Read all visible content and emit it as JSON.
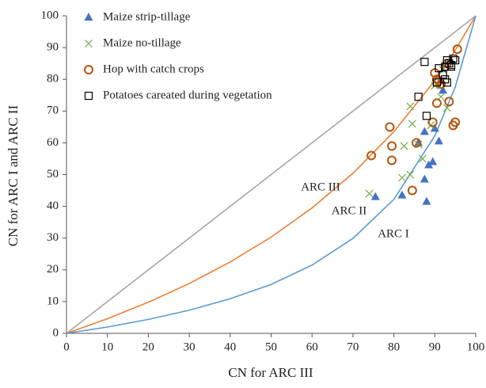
{
  "chart_data": {
    "type": "scatter",
    "xlabel": "CN for ARC III",
    "ylabel": "CN for ARC I and ARC II",
    "xlim": [
      0,
      100
    ],
    "ylim": [
      0,
      100
    ],
    "xticks": [
      0,
      10,
      20,
      30,
      40,
      50,
      60,
      70,
      80,
      90,
      100
    ],
    "yticks": [
      0,
      10,
      20,
      30,
      40,
      50,
      60,
      70,
      80,
      90,
      100
    ],
    "legend": "upper left",
    "annotations": [
      "ARC III",
      "ARC II",
      "ARC I"
    ],
    "curves": [
      {
        "color": "#a5a5a5",
        "x": [
          0,
          100
        ],
        "values": [
          0,
          100
        ]
      },
      {
        "color": "#ed7d31",
        "x": [
          0,
          10,
          20,
          30,
          40,
          50,
          60,
          70,
          80,
          90,
          95,
          100
        ],
        "values": [
          0,
          4.6,
          9.8,
          15.7,
          22.5,
          30.3,
          39.5,
          50.4,
          63.5,
          79.6,
          89.2,
          100
        ]
      },
      {
        "color": "#5b9bd5",
        "x": [
          0,
          10,
          20,
          30,
          40,
          50,
          60,
          70,
          80,
          90,
          95,
          100
        ],
        "values": [
          0,
          2.0,
          4.4,
          7.3,
          10.9,
          15.4,
          21.5,
          29.9,
          42.2,
          62.2,
          77.6,
          100
        ]
      }
    ],
    "series": [
      {
        "name": "Maize strip-tillage",
        "marker": "triangle",
        "color": "#4472c4",
        "x": [
          75.5,
          82,
          87.5,
          88,
          88.5,
          89.5,
          86,
          87.5,
          90,
          91,
          92
        ],
        "values": [
          43,
          43.5,
          48.5,
          41.5,
          53,
          54,
          60,
          63.5,
          64.5,
          60.5,
          76.5
        ]
      },
      {
        "name": "Maize no-tillage",
        "marker": "x",
        "color": "#70ad47",
        "x": [
          74,
          82,
          84,
          87,
          82.5,
          84.5,
          84,
          86,
          89,
          91.5,
          90,
          93,
          92
        ],
        "values": [
          44,
          49,
          50,
          55,
          59,
          66,
          71.5,
          59.5,
          65.5,
          74.5,
          78,
          71,
          83
        ]
      },
      {
        "name": "Hop with catch crops",
        "marker": "circle",
        "color": "#b5540f",
        "x": [
          74.5,
          79,
          79.5,
          79.5,
          84.5,
          85.5,
          89.5,
          90.5,
          93.5,
          94.5,
          95,
          90,
          90.5,
          91,
          91.5,
          93,
          95.5
        ],
        "values": [
          56,
          65,
          59,
          54.5,
          45,
          60,
          66.5,
          72.5,
          73,
          65.5,
          66.5,
          82,
          80,
          79.5,
          78.5,
          85,
          89.5
        ]
      },
      {
        "name": "Potatoes careated during vegetation",
        "marker": "square",
        "color": "#000000",
        "x": [
          87.5,
          86,
          88,
          90.5,
          91,
          92,
          92.5,
          93,
          93,
          93.5,
          94,
          94.5,
          95,
          94,
          92.5
        ],
        "values": [
          85.5,
          74.5,
          68.5,
          79,
          83.5,
          81.5,
          84,
          86,
          79,
          85,
          84,
          86.5,
          86,
          84.5,
          80
        ]
      }
    ]
  }
}
